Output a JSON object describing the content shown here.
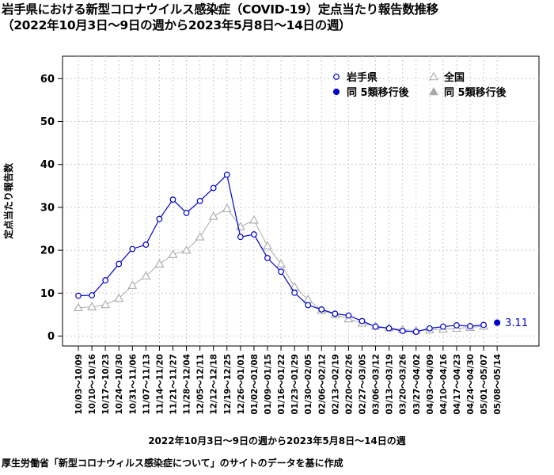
{
  "title_line1": "岩手県における新型コロナウイルス感染症（COVID-19）定点当たり報告数推移",
  "title_line2": "（2022年10月3日〜9日の週から2023年5月8日〜14日の週）",
  "source_note": "厚生労働省「新型コロナウィルス感染症について」のサイトのデータを基に作成",
  "colors": {
    "iwate": "#0000cc",
    "national": "#aaaaaa",
    "grid": "#cccccc"
  },
  "chart_data": {
    "type": "line",
    "xlabel": "2022年10月3日〜9日の週から2023年5月8日〜14日の週",
    "ylabel": "定点当たり報告数",
    "ylim": [
      0,
      60
    ],
    "yticks": [
      0,
      10,
      20,
      30,
      40,
      50,
      60
    ],
    "grid": true,
    "legend_position": "top-right",
    "categories": [
      "10/03〜10/09",
      "10/10〜10/16",
      "10/17〜10/23",
      "10/24〜10/30",
      "10/31〜11/06",
      "11/07〜11/13",
      "11/14〜11/20",
      "11/21〜11/27",
      "11/28〜12/04",
      "12/05〜12/11",
      "12/12〜12/18",
      "12/19〜12/25",
      "12/26〜01/01",
      "01/02〜01/08",
      "01/09〜01/15",
      "01/16〜01/22",
      "01/23〜01/29",
      "01/30〜02/05",
      "02/06〜02/12",
      "02/13〜02/19",
      "02/20〜02/26",
      "02/27〜03/05",
      "03/06〜03/12",
      "03/13〜03/19",
      "03/20〜03/26",
      "03/27〜04/02",
      "04/03〜04/09",
      "04/10〜04/16",
      "04/17〜04/23",
      "04/24〜04/30",
      "05/01〜05/07",
      "05/08〜05/14"
    ],
    "series": [
      {
        "name": "岩手県",
        "marker": "open-circle",
        "values": [
          9.4,
          9.5,
          13.0,
          16.8,
          20.3,
          21.3,
          27.3,
          31.8,
          28.7,
          31.5,
          34.5,
          37.6,
          23.1,
          23.7,
          18.2,
          15.0,
          10.1,
          7.2,
          6.2,
          5.2,
          4.8,
          3.5,
          2.2,
          1.8,
          1.2,
          1.0,
          1.8,
          2.2,
          2.5,
          2.3,
          2.6,
          null
        ]
      },
      {
        "name": "全国",
        "marker": "open-triangle",
        "values": [
          6.6,
          6.8,
          7.3,
          8.8,
          11.8,
          14.0,
          16.8,
          19.0,
          20.0,
          23.1,
          27.9,
          29.7,
          25.5,
          27.0,
          21.0,
          16.8,
          11.5,
          8.5,
          6.0,
          5.0,
          4.0,
          3.0,
          2.3,
          1.9,
          1.5,
          1.3,
          1.4,
          1.6,
          1.8,
          2.0,
          2.3,
          null
        ]
      },
      {
        "name": "同 5類移行後",
        "marker": "filled-circle",
        "values": [
          null,
          null,
          null,
          null,
          null,
          null,
          null,
          null,
          null,
          null,
          null,
          null,
          null,
          null,
          null,
          null,
          null,
          null,
          null,
          null,
          null,
          null,
          null,
          null,
          null,
          null,
          null,
          null,
          null,
          null,
          null,
          3.11
        ]
      },
      {
        "name": "同 5類移行後",
        "marker": "filled-triangle",
        "values": [
          null,
          null,
          null,
          null,
          null,
          null,
          null,
          null,
          null,
          null,
          null,
          null,
          null,
          null,
          null,
          null,
          null,
          null,
          null,
          null,
          null,
          null,
          null,
          null,
          null,
          null,
          null,
          null,
          null,
          null,
          null,
          null
        ]
      }
    ],
    "annotations": [
      {
        "category": "05/08〜05/14",
        "text": "3.11"
      }
    ]
  }
}
